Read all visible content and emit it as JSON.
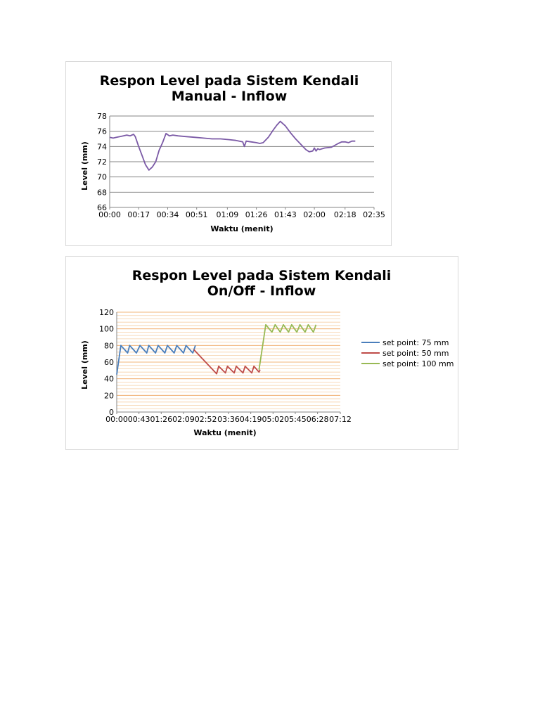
{
  "chart_data": [
    {
      "type": "line",
      "title": "Respon Level pada Sistem Kendali Manual - Inflow",
      "title_lines": [
        "Respon Level pada Sistem Kendali",
        "Manual - Inflow"
      ],
      "xlabel": "Waktu (menit)",
      "ylabel": "Level (mm)",
      "x_unit": "seconds",
      "x_tick_labels": [
        "00:00",
        "00:17",
        "00:34",
        "00:51",
        "01:09",
        "01:26",
        "01:43",
        "02:00",
        "02:18",
        "02:35"
      ],
      "x_ticks": [
        0,
        17,
        34,
        51,
        69,
        86,
        103,
        120,
        138,
        155
      ],
      "xlim": [
        0,
        155
      ],
      "ylim": [
        66,
        78
      ],
      "y_ticks": [
        66,
        68,
        70,
        72,
        74,
        76,
        78
      ],
      "grid": true,
      "legend": "none",
      "series": [
        {
          "color": "#7b5aa6",
          "x": [
            0,
            2,
            4,
            6,
            8,
            10,
            12,
            14,
            15,
            17,
            19,
            21,
            23,
            25,
            27,
            29,
            31,
            33,
            35,
            37,
            40,
            45,
            50,
            55,
            60,
            65,
            70,
            74,
            76,
            78,
            79,
            80,
            83,
            86,
            88,
            90,
            93,
            96,
            98,
            100,
            103,
            106,
            109,
            112,
            115,
            117,
            119,
            120,
            121,
            122,
            123,
            126,
            130,
            134,
            136,
            138,
            140,
            142,
            144
          ],
          "y": [
            75.2,
            75.1,
            75.2,
            75.3,
            75.4,
            75.5,
            75.4,
            75.6,
            75.3,
            74.0,
            72.8,
            71.6,
            70.9,
            71.3,
            72.0,
            73.5,
            74.5,
            75.7,
            75.4,
            75.5,
            75.4,
            75.3,
            75.2,
            75.1,
            75.0,
            75.0,
            74.9,
            74.8,
            74.7,
            74.6,
            74.0,
            74.7,
            74.6,
            74.5,
            74.4,
            74.5,
            75.2,
            76.2,
            76.8,
            77.3,
            76.7,
            75.8,
            75.0,
            74.3,
            73.6,
            73.3,
            73.4,
            73.8,
            73.4,
            73.7,
            73.6,
            73.8,
            73.9,
            74.4,
            74.6,
            74.6,
            74.5,
            74.7,
            74.7
          ]
        }
      ]
    },
    {
      "type": "line",
      "title": "Respon Level pada Sistem Kendali On/Off - Inflow",
      "title_lines": [
        "Respon Level pada Sistem Kendali",
        "On/Off - Inflow"
      ],
      "xlabel": "Waktu (menit)",
      "ylabel": "Level (mm)",
      "x_unit": "seconds",
      "x_tick_labels": [
        "00:00",
        "00:43",
        "01:26",
        "02:09",
        "02:52",
        "03:36",
        "04:19",
        "05:02",
        "05:45",
        "06:28",
        "07:12"
      ],
      "x_ticks": [
        0,
        43,
        86,
        129,
        172,
        216,
        259,
        302,
        345,
        388,
        432
      ],
      "xlim": [
        0,
        432
      ],
      "ylim": [
        0,
        120
      ],
      "y_ticks": [
        0,
        20,
        40,
        60,
        80,
        100,
        120
      ],
      "grid": true,
      "legend": "right",
      "series": [
        {
          "name": "set point: 75 mm",
          "color": "#4a7ebb",
          "x": [
            0,
            8,
            21,
            25,
            38,
            45,
            58,
            62,
            75,
            80,
            93,
            98,
            111,
            116,
            129,
            134,
            147,
            152
          ],
          "y": [
            45,
            80,
            71,
            80,
            71,
            80,
            71,
            80,
            71,
            80,
            71,
            80,
            71,
            80,
            71,
            80,
            71,
            80
          ]
        },
        {
          "name": "set point: 50 mm",
          "color": "#be4b48",
          "x": [
            149,
            193,
            197,
            210,
            214,
            227,
            231,
            244,
            248,
            261,
            265,
            275,
            277
          ],
          "y": [
            75,
            46,
            55,
            47,
            55,
            47,
            55,
            47,
            55,
            47,
            55,
            48,
            51
          ]
        },
        {
          "name": "set point: 100 mm",
          "color": "#98b954",
          "x": [
            275,
            288,
            300,
            306,
            316,
            322,
            332,
            338,
            348,
            354,
            364,
            370,
            380,
            385
          ],
          "y": [
            51,
            105,
            96,
            105,
            96,
            105,
            96,
            105,
            96,
            105,
            96,
            105,
            96,
            105
          ]
        }
      ]
    }
  ]
}
